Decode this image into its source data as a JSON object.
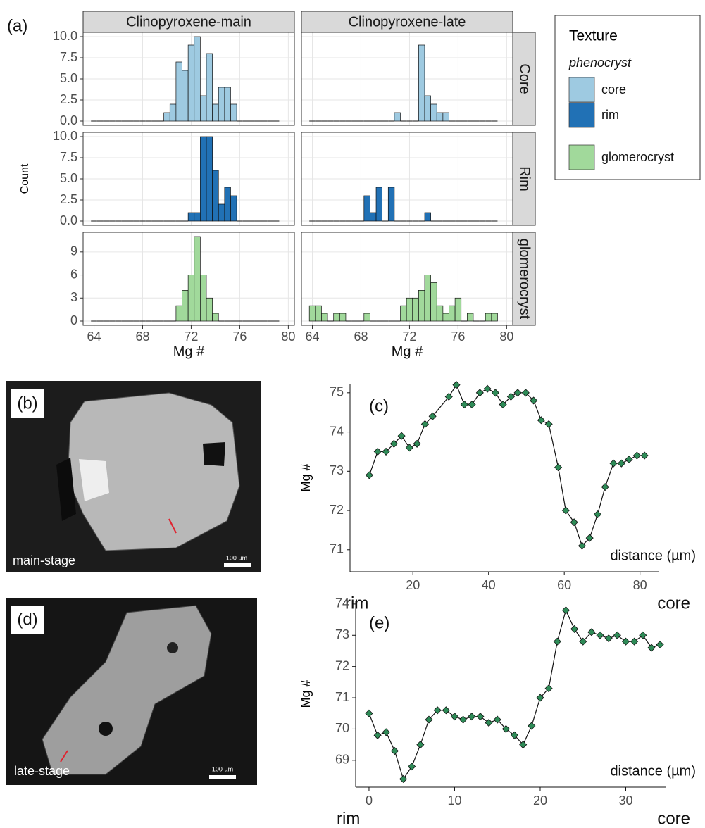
{
  "chart_data": [
    {
      "type": "histogram",
      "panel_label": "(a)",
      "x_label": "Mg #",
      "y_label": "Count",
      "columns": [
        "Clinopyroxene-main",
        "Clinopyroxene-late"
      ],
      "rows": [
        {
          "label": "Core",
          "ylim": [
            -0.5,
            10.5
          ],
          "yticks": [
            {
              "value": 0,
              "label": "0.0"
            },
            {
              "value": 2.5,
              "label": "2.5"
            },
            {
              "value": 5,
              "label": "5.0"
            },
            {
              "value": 7.5,
              "label": "7.5"
            },
            {
              "value": 10,
              "label": "10.0"
            }
          ]
        },
        {
          "label": "Rim",
          "ylim": [
            -0.5,
            10.5
          ],
          "yticks": [
            {
              "value": 0,
              "label": "0.0"
            },
            {
              "value": 2.5,
              "label": "2.5"
            },
            {
              "value": 5,
              "label": "5.0"
            },
            {
              "value": 7.5,
              "label": "7.5"
            },
            {
              "value": 10,
              "label": "10.0"
            }
          ]
        },
        {
          "label": "glomerocryst",
          "ylim": [
            -0.55,
            11.55
          ],
          "yticks": [
            0,
            3,
            6,
            9
          ]
        }
      ],
      "xlim": [
        63.1,
        80.5
      ],
      "xticks": [
        64,
        68,
        72,
        76,
        80
      ],
      "grid": true,
      "bins": [
        63.75,
        64.25,
        64.75,
        65.25,
        65.75,
        66.25,
        66.75,
        67.25,
        67.75,
        68.25,
        68.75,
        69.25,
        69.75,
        70.25,
        70.75,
        71.25,
        71.75,
        72.25,
        72.75,
        73.25,
        73.75,
        74.25,
        74.75,
        75.25,
        75.75,
        76.25,
        76.75,
        77.25,
        77.75,
        78.25,
        78.75,
        79.25
      ],
      "legend": {
        "title": "Texture",
        "subtitle": "phenocryst"
      },
      "series": [
        {
          "name": "core",
          "color": "#9ecae1",
          "values": [
            [
              0,
              0,
              0,
              0,
              0,
              0,
              0,
              0,
              0,
              0,
              0,
              0,
              1,
              2,
              7,
              6,
              9,
              10,
              3,
              8,
              2,
              4,
              4,
              2,
              0,
              0,
              0,
              0,
              0,
              0,
              0
            ],
            [
              0,
              0,
              0,
              0,
              0,
              0,
              0,
              0,
              0,
              0,
              0,
              0,
              0,
              0,
              1,
              0,
              0,
              0,
              9,
              3,
              2,
              1,
              1,
              0,
              0,
              0,
              0,
              0,
              0,
              0,
              0
            ]
          ]
        },
        {
          "name": "rim",
          "color": "#2171b5",
          "values": [
            [
              0,
              0,
              0,
              0,
              0,
              0,
              0,
              0,
              0,
              0,
              0,
              0,
              0,
              0,
              0,
              0,
              1,
              1,
              10,
              10,
              6,
              2,
              4,
              3,
              0,
              0,
              0,
              0,
              0,
              0,
              0
            ],
            [
              0,
              0,
              0,
              0,
              0,
              0,
              0,
              0,
              0,
              3,
              1,
              4,
              0,
              4,
              0,
              0,
              0,
              0,
              0,
              1,
              0,
              0,
              0,
              0,
              0,
              0,
              0,
              0,
              0,
              0,
              0
            ]
          ]
        },
        {
          "name": "glomerocryst",
          "color": "#a1d99b",
          "values": [
            [
              0,
              0,
              0,
              0,
              0,
              0,
              0,
              0,
              0,
              0,
              0,
              0,
              0,
              0,
              2,
              4,
              6,
              11,
              6,
              3,
              1,
              0,
              0,
              0,
              0,
              0,
              0,
              0,
              0,
              0,
              0
            ],
            [
              2,
              2,
              1,
              0,
              1,
              1,
              0,
              0,
              0,
              1,
              0,
              0,
              0,
              0,
              0,
              2,
              3,
              3,
              4,
              6,
              5,
              2,
              1,
              2,
              3,
              0,
              1,
              0,
              0,
              1,
              1
            ]
          ]
        }
      ]
    },
    {
      "type": "line",
      "panel_label": "(c)",
      "y_label": "Mg #",
      "x_label": "distance (µm)",
      "x_start_label": "rim",
      "x_end_label": "core",
      "color": "#2e8b57",
      "xlim": [
        3.4,
        84.9
      ],
      "ylim": [
        70.44,
        75.23
      ],
      "xticks": [
        20,
        40,
        60,
        80
      ],
      "yticks": [
        71,
        72,
        73,
        74,
        75
      ],
      "x": [
        8.5,
        10.7,
        12.9,
        15.0,
        17.0,
        19.1,
        21.1,
        23.2,
        25.2,
        29.5,
        31.5,
        33.6,
        35.6,
        37.7,
        39.7,
        41.8,
        43.8,
        45.9,
        47.7,
        49.8,
        51.9,
        53.9,
        55.9,
        58.4,
        60.4,
        62.6,
        64.7,
        66.7,
        68.8,
        70.8,
        73.0,
        75.1,
        77.1,
        79.2,
        81.2
      ],
      "values": [
        72.9,
        73.5,
        73.5,
        73.7,
        73.9,
        73.6,
        73.7,
        74.2,
        74.4,
        74.9,
        75.2,
        74.7,
        74.7,
        75.0,
        75.1,
        75.0,
        74.7,
        74.9,
        75.0,
        75.0,
        74.8,
        74.3,
        74.2,
        73.1,
        72.0,
        71.7,
        71.1,
        71.3,
        71.9,
        72.6,
        73.2,
        73.2,
        73.3,
        73.4,
        73.4
      ]
    },
    {
      "type": "line",
      "panel_label": "(e)",
      "y_label": "Mg #",
      "x_label": "distance (µm)",
      "x_start_label": "rim",
      "x_end_label": "core",
      "color": "#2e8b57",
      "xlim": [
        -1.56,
        34.65
      ],
      "ylim": [
        68.14,
        74.11
      ],
      "xticks": [
        0,
        10,
        20,
        30
      ],
      "yticks": [
        69,
        70,
        71,
        72,
        73,
        74
      ],
      "x": [
        0,
        1,
        2,
        3,
        4,
        5,
        6,
        7,
        8,
        9,
        10,
        11,
        12,
        13,
        14,
        15,
        16,
        17,
        18,
        19,
        20,
        21,
        22,
        23,
        24,
        25,
        26,
        27,
        28,
        29,
        30,
        31,
        32,
        33,
        34
      ],
      "values": [
        70.5,
        69.8,
        69.9,
        69.3,
        68.4,
        68.8,
        69.5,
        70.3,
        70.6,
        70.6,
        70.4,
        70.3,
        70.4,
        70.4,
        70.2,
        70.3,
        70.0,
        69.8,
        69.5,
        70.1,
        71.0,
        71.3,
        72.8,
        73.8,
        73.2,
        72.8,
        73.1,
        73.0,
        72.9,
        73.0,
        72.8,
        72.8,
        73.0,
        72.6,
        72.7
      ]
    }
  ],
  "micrographs": [
    {
      "panel_label": "(b)",
      "caption": "main-stage",
      "scale_bar": "100 µm"
    },
    {
      "panel_label": "(d)",
      "caption": "late-stage",
      "scale_bar": "100 µm"
    }
  ]
}
